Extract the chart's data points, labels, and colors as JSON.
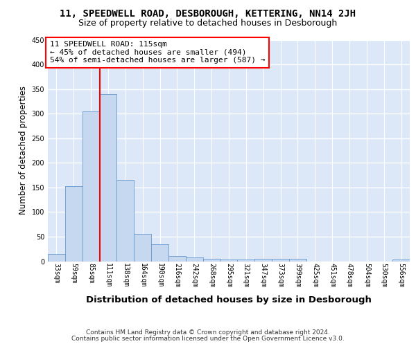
{
  "title1": "11, SPEEDWELL ROAD, DESBOROUGH, KETTERING, NN14 2JH",
  "title2": "Size of property relative to detached houses in Desborough",
  "xlabel": "Distribution of detached houses by size in Desborough",
  "ylabel": "Number of detached properties",
  "footer1": "Contains HM Land Registry data © Crown copyright and database right 2024.",
  "footer2": "Contains public sector information licensed under the Open Government Licence v3.0.",
  "annotation_line1": "11 SPEEDWELL ROAD: 115sqm",
  "annotation_line2": "← 45% of detached houses are smaller (494)",
  "annotation_line3": "54% of semi-detached houses are larger (587) →",
  "bar_values": [
    15,
    152,
    305,
    340,
    165,
    56,
    34,
    10,
    8,
    5,
    3,
    3,
    5,
    5,
    5,
    0,
    0,
    0,
    0,
    0,
    4
  ],
  "bar_labels": [
    "33sqm",
    "59sqm",
    "85sqm",
    "111sqm",
    "138sqm",
    "164sqm",
    "190sqm",
    "216sqm",
    "242sqm",
    "268sqm",
    "295sqm",
    "321sqm",
    "347sqm",
    "373sqm",
    "399sqm",
    "425sqm",
    "451sqm",
    "478sqm",
    "504sqm",
    "530sqm",
    "556sqm"
  ],
  "bar_color": "#c5d8f0",
  "bar_edgecolor": "#6699cc",
  "vline_pos": 2.5,
  "vline_color": "red",
  "ylim": [
    0,
    450
  ],
  "yticks": [
    0,
    50,
    100,
    150,
    200,
    250,
    300,
    350,
    400,
    450
  ],
  "bg_color": "#dce8f8",
  "grid_color": "#ffffff",
  "title1_fontsize": 10,
  "title2_fontsize": 9,
  "xlabel_fontsize": 9.5,
  "ylabel_fontsize": 8.5,
  "tick_fontsize": 7,
  "footer_fontsize": 6.5
}
